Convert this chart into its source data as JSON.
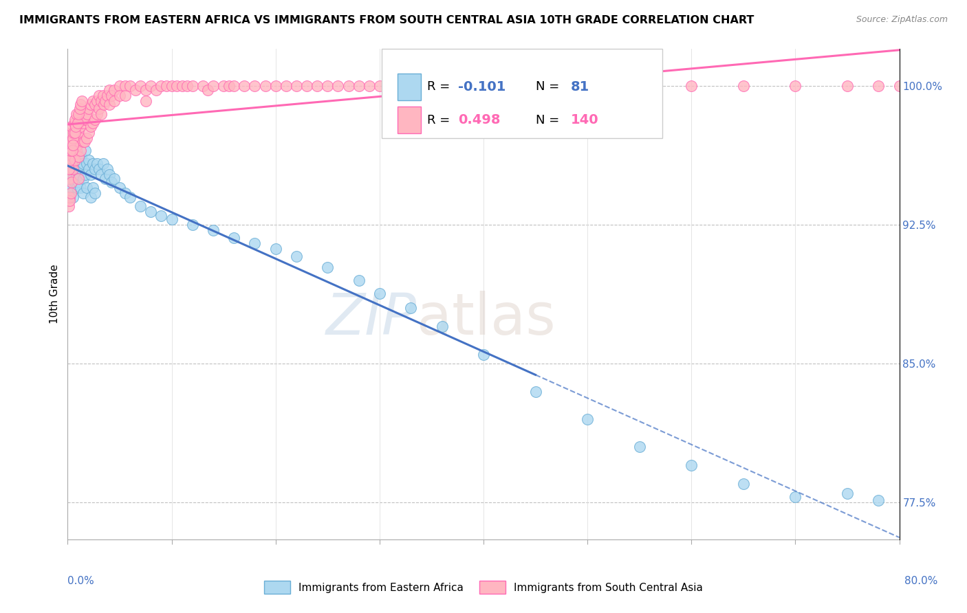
{
  "title": "IMMIGRANTS FROM EASTERN AFRICA VS IMMIGRANTS FROM SOUTH CENTRAL ASIA 10TH GRADE CORRELATION CHART",
  "source": "Source: ZipAtlas.com",
  "ylabel": "10th Grade",
  "xlim": [
    0.0,
    80.0
  ],
  "ylim": [
    75.5,
    102.0
  ],
  "yticks": [
    77.5,
    85.0,
    92.5,
    100.0
  ],
  "ytick_labels": [
    "77.5%",
    "85.0%",
    "92.5%",
    "100.0%"
  ],
  "series": [
    {
      "name": "Immigrants from Eastern Africa",
      "color": "#ADD8F0",
      "edge_color": "#6aaed6",
      "R": -0.101,
      "N": 81,
      "trend_color": "#4472C4",
      "trend_dashed_threshold": 45.0,
      "x": [
        0.1,
        0.15,
        0.2,
        0.2,
        0.25,
        0.3,
        0.3,
        0.35,
        0.4,
        0.4,
        0.5,
        0.5,
        0.5,
        0.6,
        0.6,
        0.7,
        0.7,
        0.8,
        0.8,
        0.9,
        0.9,
        1.0,
        1.0,
        1.0,
        1.1,
        1.1,
        1.2,
        1.2,
        1.3,
        1.3,
        1.5,
        1.5,
        1.5,
        1.7,
        1.7,
        1.8,
        1.8,
        2.0,
        2.0,
        2.2,
        2.2,
        2.4,
        2.4,
        2.6,
        2.6,
        2.8,
        3.0,
        3.2,
        3.4,
        3.6,
        3.8,
        4.0,
        4.2,
        4.5,
        5.0,
        5.5,
        6.0,
        7.0,
        8.0,
        9.0,
        10.0,
        12.0,
        14.0,
        16.0,
        18.0,
        20.0,
        22.0,
        25.0,
        28.0,
        30.0,
        33.0,
        36.0,
        40.0,
        45.0,
        50.0,
        55.0,
        60.0,
        65.0,
        70.0,
        75.0,
        78.0
      ],
      "y": [
        94.5,
        95.2,
        95.8,
        94.0,
        96.5,
        95.5,
        94.2,
        96.0,
        95.5,
        94.5,
        96.2,
        95.0,
        94.0,
        96.8,
        95.5,
        96.5,
        94.8,
        96.0,
        95.2,
        95.8,
        94.5,
        96.2,
        95.5,
        94.8,
        96.0,
        95.2,
        95.8,
        94.5,
        96.2,
        95.5,
        95.8,
        95.0,
        94.2,
        96.5,
        95.2,
        95.8,
        94.5,
        96.0,
        95.5,
        95.2,
        94.0,
        95.8,
        94.5,
        95.5,
        94.2,
        95.8,
        95.5,
        95.2,
        95.8,
        95.0,
        95.5,
        95.2,
        94.8,
        95.0,
        94.5,
        94.2,
        94.0,
        93.5,
        93.2,
        93.0,
        92.8,
        92.5,
        92.2,
        91.8,
        91.5,
        91.2,
        90.8,
        90.2,
        89.5,
        88.8,
        88.0,
        87.0,
        85.5,
        83.5,
        82.0,
        80.5,
        79.5,
        78.5,
        77.8,
        78.0,
        77.6
      ]
    },
    {
      "name": "Immigrants from South Central Asia",
      "color": "#FFB6C1",
      "edge_color": "#FF69B4",
      "R": 0.498,
      "N": 140,
      "trend_color": "#FF69B4",
      "trend_dashed_threshold": 999,
      "x": [
        0.1,
        0.15,
        0.2,
        0.2,
        0.25,
        0.3,
        0.3,
        0.35,
        0.4,
        0.4,
        0.5,
        0.5,
        0.5,
        0.6,
        0.6,
        0.7,
        0.7,
        0.8,
        0.8,
        0.9,
        0.9,
        1.0,
        1.0,
        1.0,
        1.0,
        1.1,
        1.1,
        1.2,
        1.2,
        1.3,
        1.3,
        1.4,
        1.5,
        1.5,
        1.6,
        1.6,
        1.7,
        1.8,
        1.8,
        1.9,
        2.0,
        2.0,
        2.2,
        2.2,
        2.4,
        2.4,
        2.6,
        2.6,
        2.8,
        2.8,
        3.0,
        3.0,
        3.2,
        3.2,
        3.4,
        3.5,
        3.6,
        3.8,
        4.0,
        4.0,
        4.2,
        4.5,
        4.5,
        5.0,
        5.0,
        5.5,
        5.5,
        6.0,
        6.5,
        7.0,
        7.5,
        7.5,
        8.0,
        8.5,
        9.0,
        9.5,
        10.0,
        10.5,
        11.0,
        11.5,
        12.0,
        13.0,
        13.5,
        14.0,
        15.0,
        15.5,
        16.0,
        17.0,
        18.0,
        19.0,
        20.0,
        21.0,
        22.0,
        23.0,
        24.0,
        25.0,
        26.0,
        27.0,
        28.0,
        29.0,
        30.0,
        31.0,
        32.0,
        33.0,
        34.0,
        35.0,
        36.0,
        38.0,
        40.0,
        42.0,
        45.0,
        48.0,
        50.0,
        55.0,
        60.0,
        65.0,
        70.0,
        75.0,
        78.0,
        80.0,
        0.12,
        0.18,
        0.22,
        0.28,
        0.32,
        0.38,
        0.42,
        0.48,
        0.52,
        0.58,
        0.62,
        0.68,
        0.72,
        0.78,
        0.85,
        0.95,
        1.05,
        1.15,
        1.25,
        1.35
      ],
      "y": [
        93.5,
        94.0,
        95.0,
        93.8,
        96.0,
        95.5,
        94.2,
        96.5,
        95.8,
        94.8,
        97.0,
        96.2,
        95.5,
        97.2,
        96.5,
        97.5,
        96.0,
        97.8,
        96.5,
        98.0,
        96.8,
        98.2,
        97.5,
        96.2,
        95.0,
        98.0,
        97.0,
        97.8,
        96.5,
        98.2,
        97.2,
        98.5,
        98.0,
        97.0,
        98.2,
        97.0,
        98.5,
        98.2,
        97.2,
        98.5,
        98.8,
        97.5,
        99.0,
        97.8,
        99.2,
        98.0,
        99.0,
        98.2,
        99.2,
        98.5,
        99.5,
        98.8,
        99.2,
        98.5,
        99.5,
        99.0,
        99.2,
        99.5,
        99.8,
        99.0,
        99.5,
        99.8,
        99.2,
        100.0,
        99.5,
        100.0,
        99.5,
        100.0,
        99.8,
        100.0,
        99.8,
        99.2,
        100.0,
        99.8,
        100.0,
        100.0,
        100.0,
        100.0,
        100.0,
        100.0,
        100.0,
        100.0,
        99.8,
        100.0,
        100.0,
        100.0,
        100.0,
        100.0,
        100.0,
        100.0,
        100.0,
        100.0,
        100.0,
        100.0,
        100.0,
        100.0,
        100.0,
        100.0,
        100.0,
        100.0,
        100.0,
        100.0,
        100.0,
        100.0,
        100.0,
        100.0,
        100.0,
        100.0,
        100.0,
        100.0,
        100.0,
        100.0,
        100.0,
        100.0,
        100.0,
        100.0,
        100.0,
        100.0,
        100.0,
        100.0,
        95.5,
        96.0,
        96.5,
        97.0,
        97.5,
        97.8,
        96.5,
        97.2,
        96.8,
        97.5,
        98.0,
        97.5,
        98.2,
        97.8,
        98.5,
        98.0,
        98.5,
        98.8,
        99.0,
        99.2
      ]
    }
  ],
  "watermark_zip": "ZIP",
  "watermark_atlas": "atlas",
  "background_color": "#ffffff"
}
